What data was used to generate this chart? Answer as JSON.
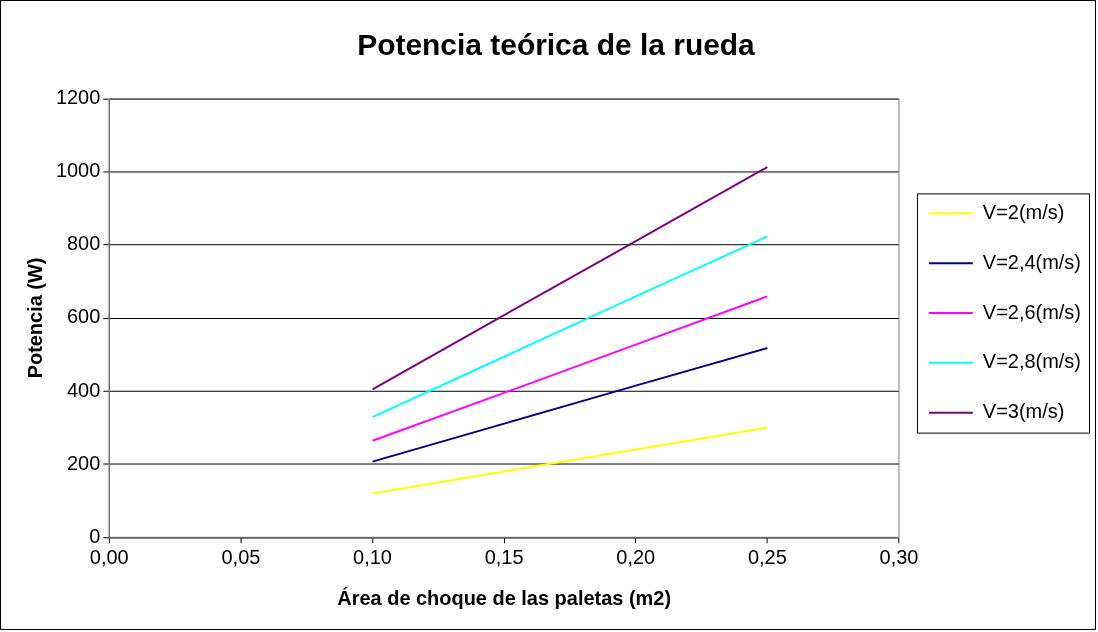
{
  "chart_data": {
    "type": "line",
    "title": "Potencia teórica de la rueda",
    "xlabel": "Área de choque de las paletas (m2)",
    "ylabel": "Potencia (W)",
    "x": [
      0.1,
      0.15,
      0.2,
      0.25
    ],
    "series": [
      {
        "name": "V=2(m/s)",
        "color": "#ffff00",
        "values": [
          120,
          180,
          240,
          300
        ]
      },
      {
        "name": "V=2,4(m/s)",
        "color": "#000080",
        "values": [
          207,
          311,
          415,
          518
        ]
      },
      {
        "name": "V=2,6(m/s)",
        "color": "#ff00ff",
        "values": [
          264,
          395,
          527,
          659
        ]
      },
      {
        "name": "V=2,8(m/s)",
        "color": "#00ffff",
        "values": [
          329,
          494,
          659,
          823
        ]
      },
      {
        "name": "V=3(m/s)",
        "color": "#800080",
        "values": [
          405,
          608,
          810,
          1013
        ]
      }
    ],
    "xlim": [
      0,
      0.3
    ],
    "xticks": [
      {
        "value": 0,
        "label": "0,00"
      },
      {
        "value": 0.05,
        "label": "0,05"
      },
      {
        "value": 0.1,
        "label": "0,10"
      },
      {
        "value": 0.15,
        "label": "0,15"
      },
      {
        "value": 0.2,
        "label": "0,20"
      },
      {
        "value": 0.25,
        "label": "0,25"
      },
      {
        "value": 0.3,
        "label": "0,30"
      }
    ],
    "ylim": [
      0,
      1200
    ],
    "yticks": [
      0,
      200,
      400,
      600,
      800,
      1000,
      1200
    ],
    "grid": "y",
    "legend": "right",
    "marker": "none",
    "line_style": "solid"
  }
}
